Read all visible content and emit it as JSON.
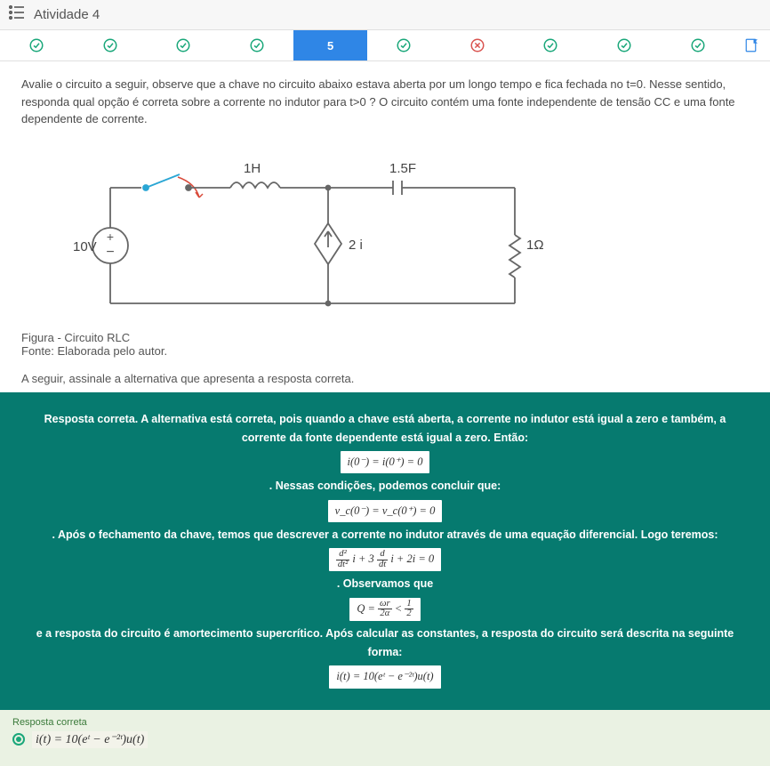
{
  "header": {
    "title": "Atividade 4"
  },
  "tabs": {
    "items": [
      {
        "state": "check"
      },
      {
        "state": "check"
      },
      {
        "state": "check"
      },
      {
        "state": "check"
      },
      {
        "state": "active",
        "label": "5"
      },
      {
        "state": "check"
      },
      {
        "state": "cross"
      },
      {
        "state": "check"
      },
      {
        "state": "check"
      },
      {
        "state": "check"
      }
    ],
    "colors": {
      "check": "#1aa77a",
      "cross": "#d9534f",
      "active_bg": "#2f86e6",
      "flag": "#2f86e6"
    }
  },
  "question": {
    "text": "Avalie o circuito a seguir, observe que a chave no circuito abaixo estava aberta por um longo tempo e fica fechada no t=0. Nesse sentido, responda qual opção é correta sobre a corrente no indutor para t>0 ? O circuito contém uma fonte independente de tensão CC e uma fonte dependente de corrente.",
    "instruction": "A seguir, assinale a alternativa que apresenta a resposta correta."
  },
  "figure": {
    "caption": "Figura - Circuito RLC",
    "source": "Fonte: Elaborada pelo autor.",
    "labels": {
      "voltage": "10V",
      "inductor": "1H",
      "capacitor": "1.5F",
      "dep_source": "2 i",
      "resistor": "1Ω"
    },
    "stroke": "#666666",
    "text_color": "#444444",
    "switch_blue": "#2aa6d4",
    "switch_red": "#d94a3a"
  },
  "feedback": {
    "intro": "Resposta correta. A alternativa está correta, pois quando a chave está aberta, a corrente no indutor está igual a zero e também, a corrente da fonte dependente está igual a zero. Então:",
    "eq1": "i(0⁻) = i(0⁺) = 0",
    "line2": ". Nessas condições, podemos concluir que:",
    "eq2": "v_c(0⁻) = v_c(0⁺) = 0",
    "line3": ". Após o fechamento da chave, temos que descrever a corrente no indutor através de uma equação diferencial. Logo teremos:",
    "eq3_html": "<span class='frac'><span class='num'>d²</span><span class='den'>dt²</span></span> i + 3 <span class='frac'><span class='num'>d</span><span class='den'>dt</span></span> i + 2i = 0",
    "line4": ". Observamos que",
    "eq4_html": "Q = <span class='frac'><span class='num'>ωr</span><span class='den'>2α</span></span> &lt; <span class='frac'><span class='num'>1</span><span class='den'>2</span></span>",
    "line5": "e a resposta do circuito é amortecimento supercrítico. Após calcular as constantes, a resposta do circuito será descrita na seguinte forma:",
    "eq5": "i(t) = 10(eᵗ − e⁻²ᵗ)u(t)"
  },
  "answer": {
    "label": "Resposta correta",
    "equation": "i(t) = 10(eᵗ − e⁻²ᵗ)u(t)"
  }
}
